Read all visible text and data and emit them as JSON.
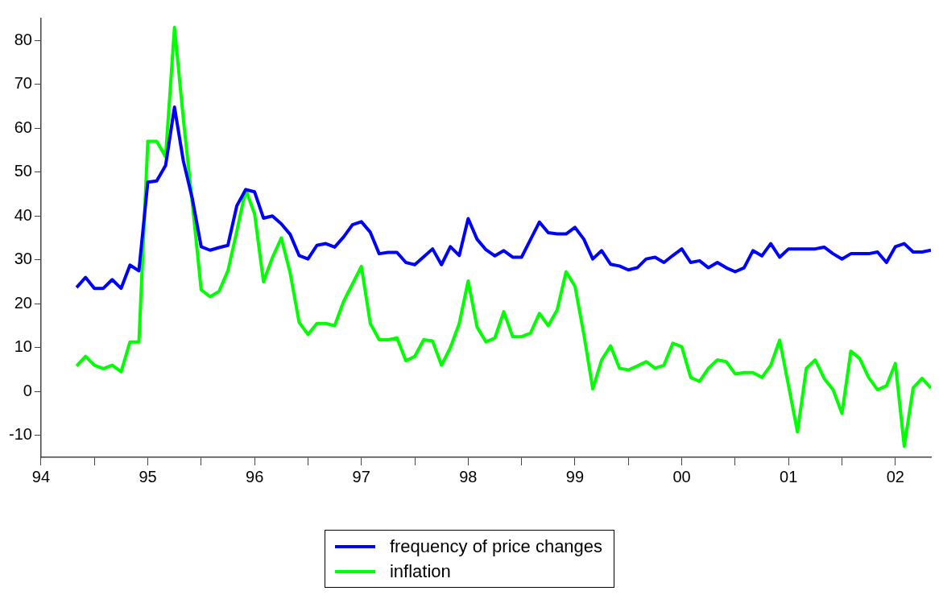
{
  "chart_data": {
    "type": "line",
    "x": [
      "1994-05",
      "1994-06",
      "1994-07",
      "1994-08",
      "1994-09",
      "1994-10",
      "1994-11",
      "1994-12",
      "1995-01",
      "1995-02",
      "1995-03",
      "1995-04",
      "1995-05",
      "1995-06",
      "1995-07",
      "1995-08",
      "1995-09",
      "1995-10",
      "1995-11",
      "1995-12",
      "1996-01",
      "1996-02",
      "1996-03",
      "1996-04",
      "1996-05",
      "1996-06",
      "1996-07",
      "1996-08",
      "1996-09",
      "1996-10",
      "1996-11",
      "1996-12",
      "1997-01",
      "1997-02",
      "1997-03",
      "1997-04",
      "1997-05",
      "1997-06",
      "1997-07",
      "1997-08",
      "1997-09",
      "1997-10",
      "1997-11",
      "1997-12",
      "1998-01",
      "1998-02",
      "1998-03",
      "1998-04",
      "1998-05",
      "1998-06",
      "1998-07",
      "1998-08",
      "1998-09",
      "1998-10",
      "1998-11",
      "1998-12",
      "1999-01",
      "1999-02",
      "1999-03",
      "1999-04",
      "1999-05",
      "1999-06",
      "1999-07",
      "1999-08",
      "1999-09",
      "1999-10",
      "1999-11",
      "1999-12",
      "2000-01",
      "2000-02",
      "2000-03",
      "2000-04",
      "2000-05",
      "2000-06",
      "2000-07",
      "2000-08",
      "2000-09",
      "2000-10",
      "2000-11",
      "2000-12",
      "2001-01",
      "2001-02",
      "2001-03",
      "2001-04",
      "2001-05",
      "2001-06",
      "2001-07",
      "2001-08",
      "2001-09",
      "2001-10",
      "2001-11",
      "2001-12",
      "2002-01",
      "2002-02",
      "2002-03",
      "2002-04",
      "2002-05"
    ],
    "series": [
      {
        "name": "frequency of price changes",
        "color": "#0000ff",
        "values": [
          23.7,
          26,
          23.5,
          23.5,
          25.5,
          23.5,
          28.8,
          27.5,
          47.7,
          48,
          51.5,
          64.8,
          52.5,
          44,
          33,
          32.2,
          32.8,
          33.3,
          42.3,
          46,
          45.5,
          39.5,
          40,
          38.2,
          35.8,
          31,
          30.2,
          33.3,
          33.7,
          32.9,
          35.2,
          38,
          38.7,
          36.3,
          31.4,
          31.7,
          31.7,
          29.4,
          28.9,
          30.7,
          32.5,
          28.9,
          33,
          31,
          39.4,
          34.7,
          32.3,
          30.9,
          32.1,
          30.6,
          30.6,
          34.6,
          38.6,
          36.2,
          35.9,
          35.9,
          37.4,
          34.7,
          30.2,
          32.1,
          29,
          28.6,
          27.7,
          28.2,
          30.2,
          30.6,
          29.4,
          31,
          32.5,
          29.4,
          29.8,
          28.2,
          29.4,
          28.2,
          27.3,
          28.2,
          32.1,
          30.9,
          33.7,
          30.6,
          32.5,
          32.5,
          32.5,
          32.5,
          32.9,
          31.4,
          30.2,
          31.4,
          31.4,
          31.4,
          31.8,
          29.4,
          33,
          33.7,
          31.8,
          31.8,
          32.2
        ]
      },
      {
        "name": "inflation",
        "color": "#00ff00",
        "values": [
          5.8,
          8,
          6,
          5.2,
          6,
          4.5,
          11.3,
          11.3,
          57,
          57,
          53.5,
          83,
          62,
          43,
          23.2,
          21.6,
          22.8,
          27.5,
          36.5,
          46,
          40.5,
          25,
          30.5,
          35,
          27,
          15.8,
          13,
          15.5,
          15.5,
          15,
          20.5,
          24.5,
          28.5,
          15.5,
          11.8,
          11.8,
          12.2,
          7,
          8,
          11.8,
          11.5,
          6,
          10,
          15.5,
          25.2,
          14.7,
          11.3,
          12.2,
          18.2,
          12.5,
          12.5,
          13.3,
          17.8,
          15,
          18.6,
          27.3,
          24,
          13,
          0.6,
          7.2,
          10.4,
          5.3,
          4.9,
          5.8,
          6.8,
          5.3,
          6,
          11,
          10.2,
          3.2,
          2.3,
          5.3,
          7.2,
          6.8,
          4,
          4.3,
          4.3,
          3.2,
          6,
          11.7,
          1.3,
          -9.2,
          5.3,
          7.2,
          3,
          0.4,
          -5,
          9.2,
          7.5,
          3.2,
          0.4,
          1.3,
          6.4,
          -12.5,
          0.8,
          3,
          0.8
        ]
      }
    ],
    "xlim": [
      "1994-01",
      "2002-05"
    ],
    "xticks": [
      {
        "value": "1994-01",
        "label": "94"
      },
      {
        "value": "1994-07",
        "label": null
      },
      {
        "value": "1995-01",
        "label": "95"
      },
      {
        "value": "1995-07",
        "label": null
      },
      {
        "value": "1996-01",
        "label": "96"
      },
      {
        "value": "1996-07",
        "label": null
      },
      {
        "value": "1997-01",
        "label": "97"
      },
      {
        "value": "1997-07",
        "label": null
      },
      {
        "value": "1998-01",
        "label": "98"
      },
      {
        "value": "1998-07",
        "label": null
      },
      {
        "value": "1999-01",
        "label": "99"
      },
      {
        "value": "1999-07",
        "label": null
      },
      {
        "value": "2000-01",
        "label": "00"
      },
      {
        "value": "2000-07",
        "label": null
      },
      {
        "value": "2001-01",
        "label": "01"
      },
      {
        "value": "2001-07",
        "label": null
      },
      {
        "value": "2002-01",
        "label": "02"
      }
    ],
    "ylim": [
      -15,
      85
    ],
    "yticks": [
      -10,
      0,
      10,
      20,
      30,
      40,
      50,
      60,
      70,
      80
    ],
    "grid": false,
    "legend": "bottom",
    "marker": "none",
    "line_style": "solid"
  }
}
